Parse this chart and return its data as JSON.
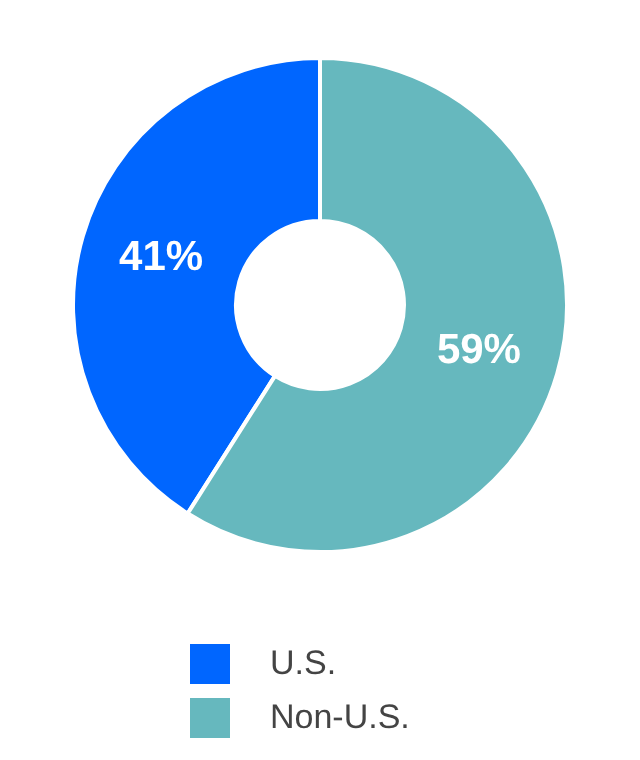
{
  "chart_data": {
    "type": "donut",
    "categories": [
      "U.S.",
      "Non-U.S."
    ],
    "values": [
      41,
      59
    ],
    "colors": [
      "#0066ff",
      "#66b8be"
    ],
    "value_labels": [
      "41%",
      "59%"
    ],
    "legend": "bottom"
  }
}
